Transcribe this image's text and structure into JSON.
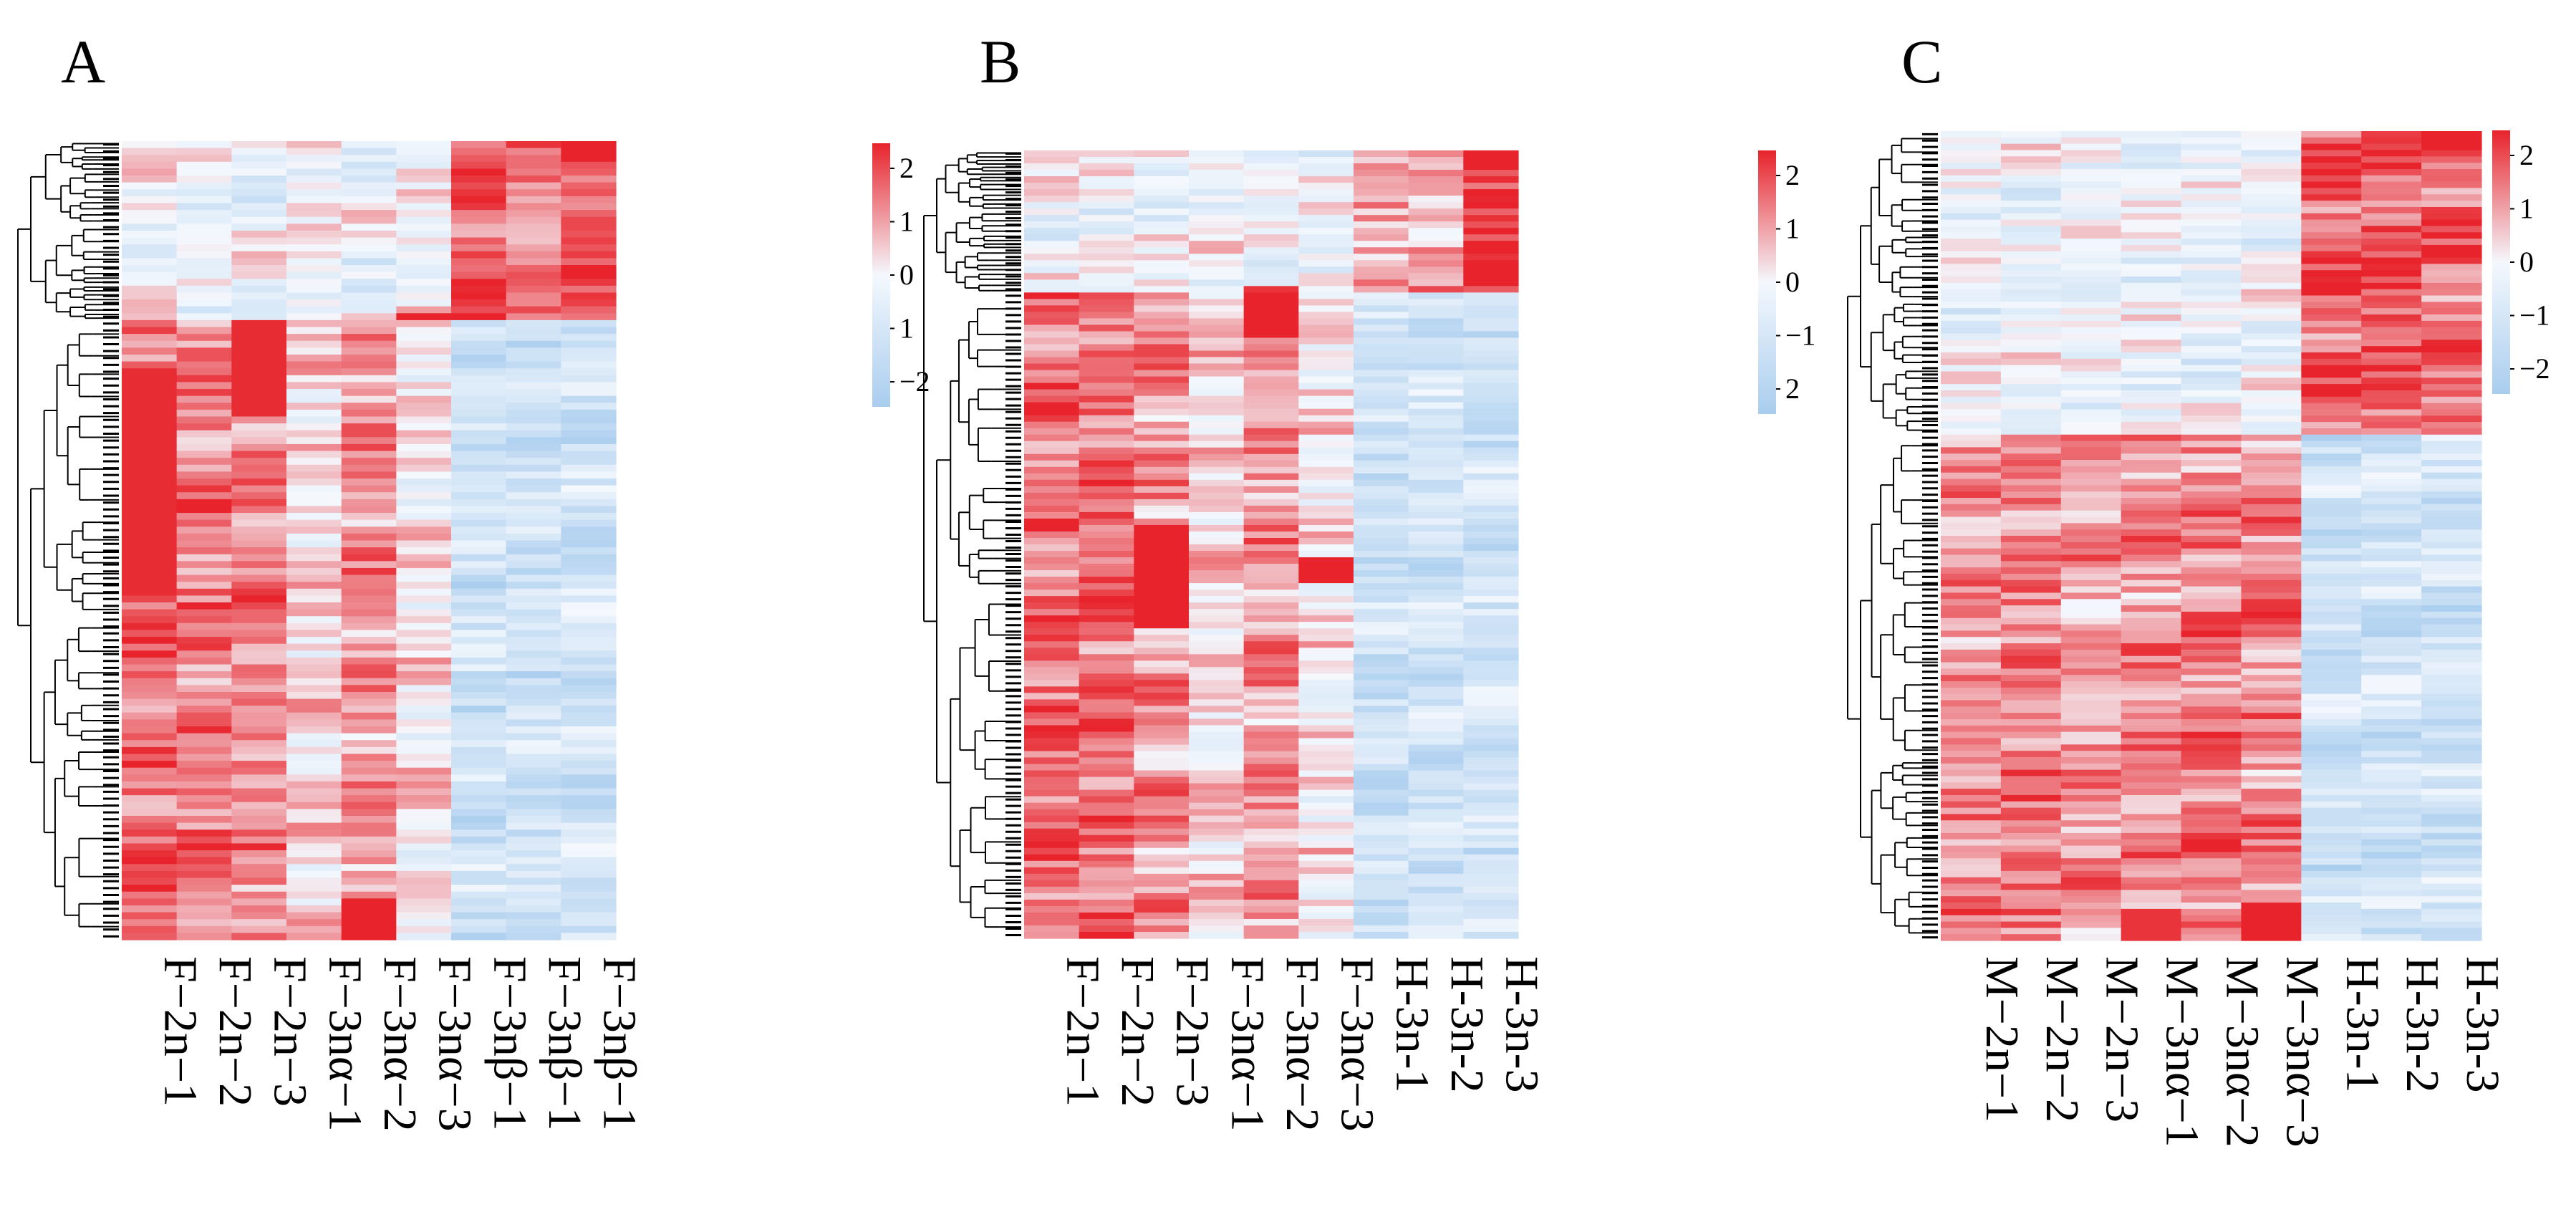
{
  "figure": {
    "colors": {
      "low": "#a9cdee",
      "mid": "#f4f8fd",
      "high": "#e8232b",
      "tree": "#000000"
    }
  },
  "chart_data": [
    {
      "type": "heatmap",
      "panel_label": "A",
      "columns": [
        "F−2n−1",
        "F−2n−2",
        "F−2n−3",
        "F−3nα−1",
        "F−3nα−2",
        "F−3nα−3",
        "F−3nβ−1",
        "F−3nβ−1",
        "F−3nβ−1"
      ],
      "scale": {
        "min": -2.5,
        "max": 2.5,
        "ticks": [
          2,
          1,
          0,
          1,
          -2
        ]
      },
      "clusters": [
        {
          "name": "top",
          "rows": 26,
          "profile": [
            -0.2,
            -0.3,
            -0.3,
            -0.1,
            -0.3,
            0.0,
            2.0,
            1.4,
            1.8
          ],
          "events": [
            {
              "col": 5,
              "at": 0.99,
              "span": 0.02,
              "value": 2.6
            }
          ]
        },
        {
          "name": "bottom",
          "rows": 90,
          "profile": [
            1.7,
            1.5,
            1.4,
            0.4,
            1.2,
            0.2,
            -1.2,
            -1.2,
            -1.2
          ],
          "events": [
            {
              "col": 2,
              "at": 0.06,
              "span": 0.1,
              "value": 2.4
            },
            {
              "col": 0,
              "at": 0.26,
              "span": 0.18,
              "value": 2.4
            },
            {
              "col": 4,
              "at": 0.97,
              "span": 0.04,
              "value": 2.5
            }
          ]
        }
      ]
    },
    {
      "type": "heatmap",
      "panel_label": "B",
      "columns": [
        "F−2n−1",
        "F−2n−2",
        "F−2n−3",
        "F−3nα−1",
        "F−3nα−2",
        "F−3nα−3",
        "H-3n-1",
        "H-3n-2",
        "H-3n-3"
      ],
      "scale": {
        "min": -2.5,
        "max": 2.5,
        "ticks": [
          2,
          1,
          0,
          -1,
          2
        ]
      },
      "clusters": [
        {
          "name": "top",
          "rows": 22,
          "profile": [
            -0.2,
            -0.2,
            -0.2,
            -0.1,
            -0.2,
            -0.1,
            1.0,
            0.9,
            2.4
          ],
          "events": [
            {
              "col": 4,
              "at": 1.0,
              "span": 0.06,
              "value": 2.3
            }
          ]
        },
        {
          "name": "bottom",
          "rows": 100,
          "profile": [
            1.6,
            1.6,
            1.1,
            0.4,
            1.2,
            0.3,
            -1.2,
            -1.2,
            -1.2
          ],
          "events": [
            {
              "col": 4,
              "at": 0.02,
              "span": 0.05,
              "value": 2.5
            },
            {
              "col": 2,
              "at": 0.44,
              "span": 0.08,
              "value": 2.5
            },
            {
              "col": 5,
              "at": 0.43,
              "span": 0.02,
              "value": 2.5
            }
          ]
        }
      ]
    },
    {
      "type": "heatmap",
      "panel_label": "C",
      "columns": [
        "M−2n−1",
        "M−2n−2",
        "M−2n−3",
        "M−3nα−1",
        "M−3nα−2",
        "M−3nα−3",
        "H-3n-1",
        "H-3n-2",
        "H-3n-3"
      ],
      "scale": {
        "min": -2.5,
        "max": 2.5,
        "ticks": [
          2,
          1,
          0,
          -1,
          -2
        ]
      },
      "clusters": [
        {
          "name": "top",
          "rows": 48,
          "profile": [
            -0.3,
            -0.3,
            -0.3,
            -0.3,
            -0.3,
            -0.3,
            1.7,
            1.9,
            1.6
          ],
          "events": [
            {
              "col": 8,
              "at": 0.02,
              "span": 0.04,
              "value": 2.5
            }
          ]
        },
        {
          "name": "bottom",
          "rows": 80,
          "profile": [
            1.2,
            1.4,
            1.1,
            1.2,
            1.4,
            1.3,
            -1.2,
            -1.2,
            -1.2
          ],
          "events": [
            {
              "col": 5,
              "at": 0.98,
              "span": 0.05,
              "value": 2.5
            },
            {
              "col": 3,
              "at": 0.97,
              "span": 0.03,
              "value": 2.3
            }
          ]
        }
      ]
    }
  ]
}
